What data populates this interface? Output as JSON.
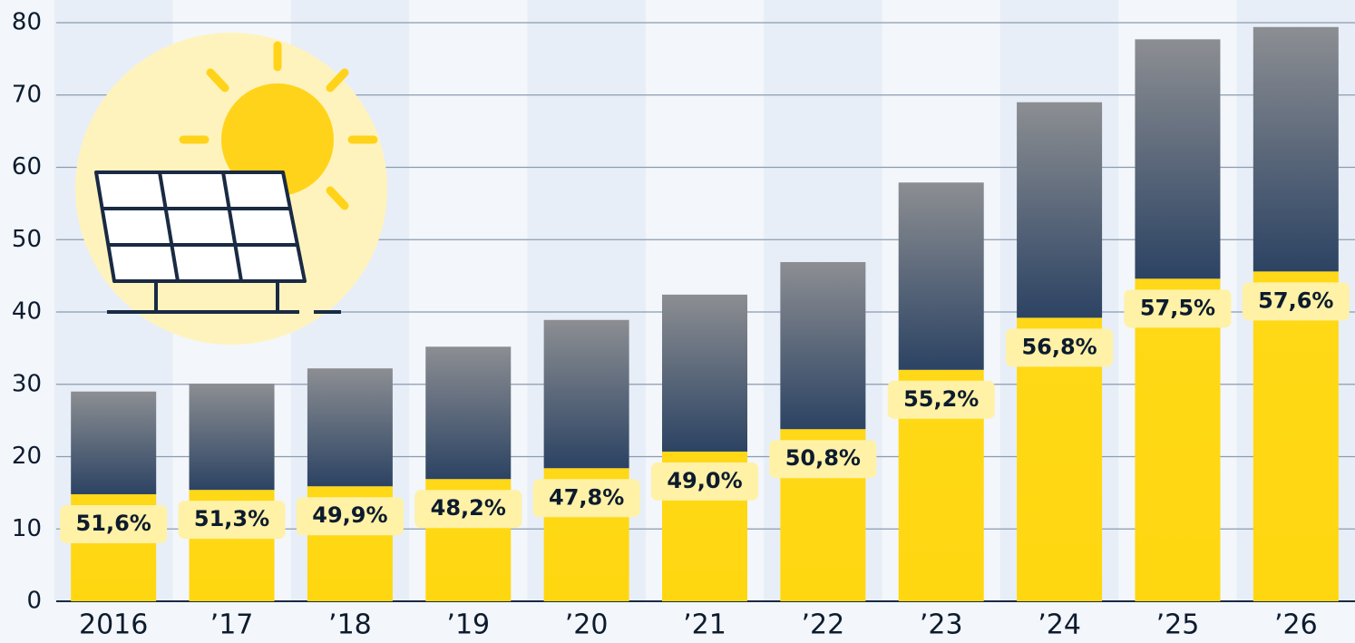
{
  "chart_data": {
    "type": "bar",
    "stacked": true,
    "categories": [
      "2016",
      "’17",
      "’18",
      "’19",
      "’20",
      "’21",
      "’22",
      "’23",
      "’24",
      "’25",
      "’26"
    ],
    "series": [
      {
        "color": "#ffd817",
        "values": [
          14.8,
          15.4,
          15.9,
          16.9,
          18.4,
          20.7,
          23.8,
          32.0,
          39.2,
          44.6,
          45.6
        ],
        "data_labels": [
          "51,6%",
          "51,3%",
          "49,9%",
          "48,2%",
          "47,8%",
          "49,0%",
          "50,8%",
          "55,2%",
          "56,8%",
          "57,5%",
          "57,6%"
        ]
      },
      {
        "color": "#2c4363",
        "values": [
          14.2,
          14.7,
          16.3,
          18.3,
          20.5,
          21.7,
          23.1,
          25.9,
          29.8,
          33.1,
          33.8
        ]
      }
    ],
    "ylim": [
      0,
      80
    ],
    "yticks": [
      0,
      10,
      20,
      30,
      40,
      50,
      60,
      70,
      80
    ],
    "grid": true
  }
}
